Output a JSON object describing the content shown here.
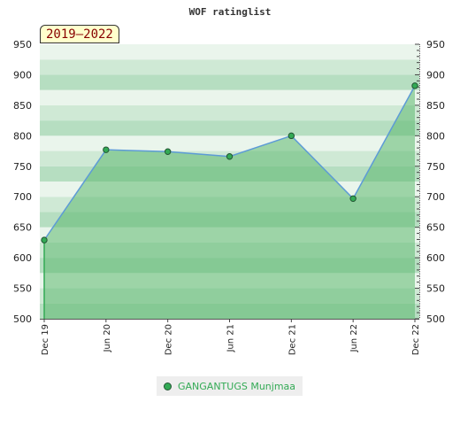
{
  "colors": {
    "band_light": "#eaf5ec",
    "band_mid": "#cfe9d5",
    "band_dark": "#b6dec1",
    "area_fill": "#5cb86f",
    "line": "#5d9bd6",
    "marker": "#33aa55",
    "marker_stroke": "#225533"
  },
  "chart_data": {
    "type": "area",
    "title": "WOF ratinglist",
    "badge": "2019–2022",
    "x_labels": [
      "Dec 19",
      "Jun 20",
      "Dec 20",
      "Jun 21",
      "Dec 21",
      "Jun 22",
      "Dec 22"
    ],
    "ylim": [
      500,
      950
    ],
    "y_ticks": [
      "500",
      "550",
      "600",
      "650",
      "700",
      "750",
      "800",
      "850",
      "900",
      "950"
    ],
    "grid": true,
    "legend_position": "bottom",
    "series": [
      {
        "name": "GANGANTUGS Munjmaa",
        "values": [
          629,
          777,
          774,
          766,
          800,
          697,
          882
        ]
      }
    ]
  }
}
